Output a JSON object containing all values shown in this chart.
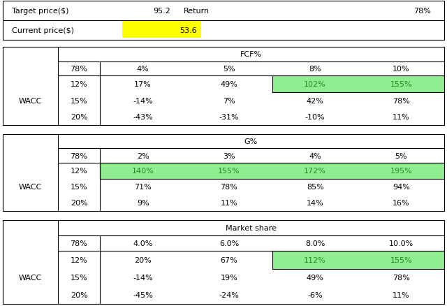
{
  "header_row": {
    "target_price_label": "Target price($)",
    "target_price_value": "95.2",
    "return_label": "Return",
    "return_value": "78%",
    "current_price_label": "Current price($)",
    "current_price_value": "53.6",
    "current_price_bg": "#FFFF00"
  },
  "table1": {
    "title": "FCF%",
    "wacc_label": "WACC",
    "header_row_label": "78%",
    "header_col_vals": [
      "4%",
      "5%",
      "8%",
      "10%"
    ],
    "row_labels": [
      "12%",
      "15%",
      "20%"
    ],
    "data": [
      [
        "17%",
        "49%",
        "102%",
        "155%"
      ],
      [
        "-14%",
        "7%",
        "42%",
        "78%"
      ],
      [
        "-43%",
        "-31%",
        "-10%",
        "11%"
      ]
    ],
    "highlights": [
      [
        false,
        false,
        true,
        true
      ],
      [
        false,
        false,
        false,
        false
      ],
      [
        false,
        false,
        false,
        false
      ]
    ],
    "highlight_color": "#90EE90",
    "highlight_text_color": "#228B22"
  },
  "table2": {
    "title": "G%",
    "wacc_label": "WACC",
    "header_row_label": "78%",
    "header_col_vals": [
      "2%",
      "3%",
      "4%",
      "5%"
    ],
    "row_labels": [
      "12%",
      "15%",
      "20%"
    ],
    "data": [
      [
        "140%",
        "155%",
        "172%",
        "195%"
      ],
      [
        "71%",
        "78%",
        "85%",
        "94%"
      ],
      [
        "9%",
        "11%",
        "14%",
        "16%"
      ]
    ],
    "highlights": [
      [
        true,
        true,
        true,
        true
      ],
      [
        false,
        false,
        false,
        false
      ],
      [
        false,
        false,
        false,
        false
      ]
    ],
    "highlight_color": "#90EE90",
    "highlight_text_color": "#228B22"
  },
  "table3": {
    "title": "Market share",
    "wacc_label": "WACC",
    "header_row_label": "78%",
    "header_col_vals": [
      "4.0%",
      "6.0%",
      "8.0%",
      "10.0%"
    ],
    "row_labels": [
      "12%",
      "15%",
      "20%"
    ],
    "data": [
      [
        "20%",
        "67%",
        "112%",
        "155%"
      ],
      [
        "-14%",
        "19%",
        "49%",
        "78%"
      ],
      [
        "-45%",
        "-24%",
        "-6%",
        "11%"
      ]
    ],
    "highlights": [
      [
        false,
        false,
        true,
        true
      ],
      [
        false,
        false,
        false,
        false
      ],
      [
        false,
        false,
        false,
        false
      ]
    ],
    "highlight_color": "#90EE90",
    "highlight_text_color": "#228B22"
  },
  "border_color": "#000000",
  "text_color": "#000000",
  "bg_color": "#FFFFFF",
  "font_size": 8.0
}
